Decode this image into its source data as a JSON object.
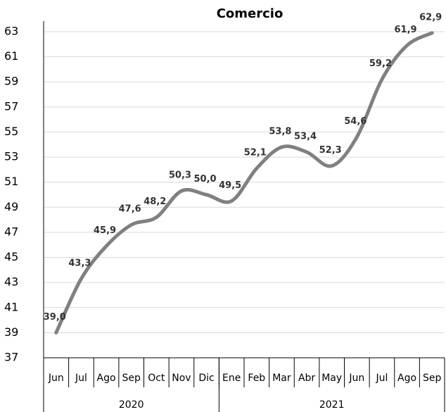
{
  "chart_data": {
    "type": "line",
    "title": "Comercio",
    "groups": [
      {
        "name": "2020",
        "categories": [
          "Jun",
          "Jul",
          "Ago",
          "Sep",
          "Oct",
          "Nov",
          "Dic"
        ]
      },
      {
        "name": "2021",
        "categories": [
          "Ene",
          "Feb",
          "Mar",
          "Abr",
          "May",
          "Jun",
          "Jul",
          "Ago",
          "Sep"
        ]
      }
    ],
    "series": [
      {
        "name": "Comercio",
        "color": "#808080",
        "values": [
          39.0,
          43.3,
          45.9,
          47.6,
          48.2,
          50.3,
          50.0,
          49.5,
          52.1,
          53.8,
          53.4,
          52.3,
          54.6,
          59.2,
          61.9,
          62.9
        ],
        "value_labels": [
          "39,0",
          "43,3",
          "45,9",
          "47,6",
          "48,2",
          "50,3",
          "50,0",
          "49,5",
          "52,1",
          "53,8",
          "53,4",
          "52,3",
          "54,6",
          "59,2",
          "61,9",
          "62,9"
        ]
      }
    ],
    "ylim": [
      37,
      63
    ],
    "yticks": [
      37,
      39,
      41,
      43,
      45,
      47,
      49,
      51,
      53,
      55,
      57,
      59,
      61,
      63
    ],
    "grid": true
  }
}
